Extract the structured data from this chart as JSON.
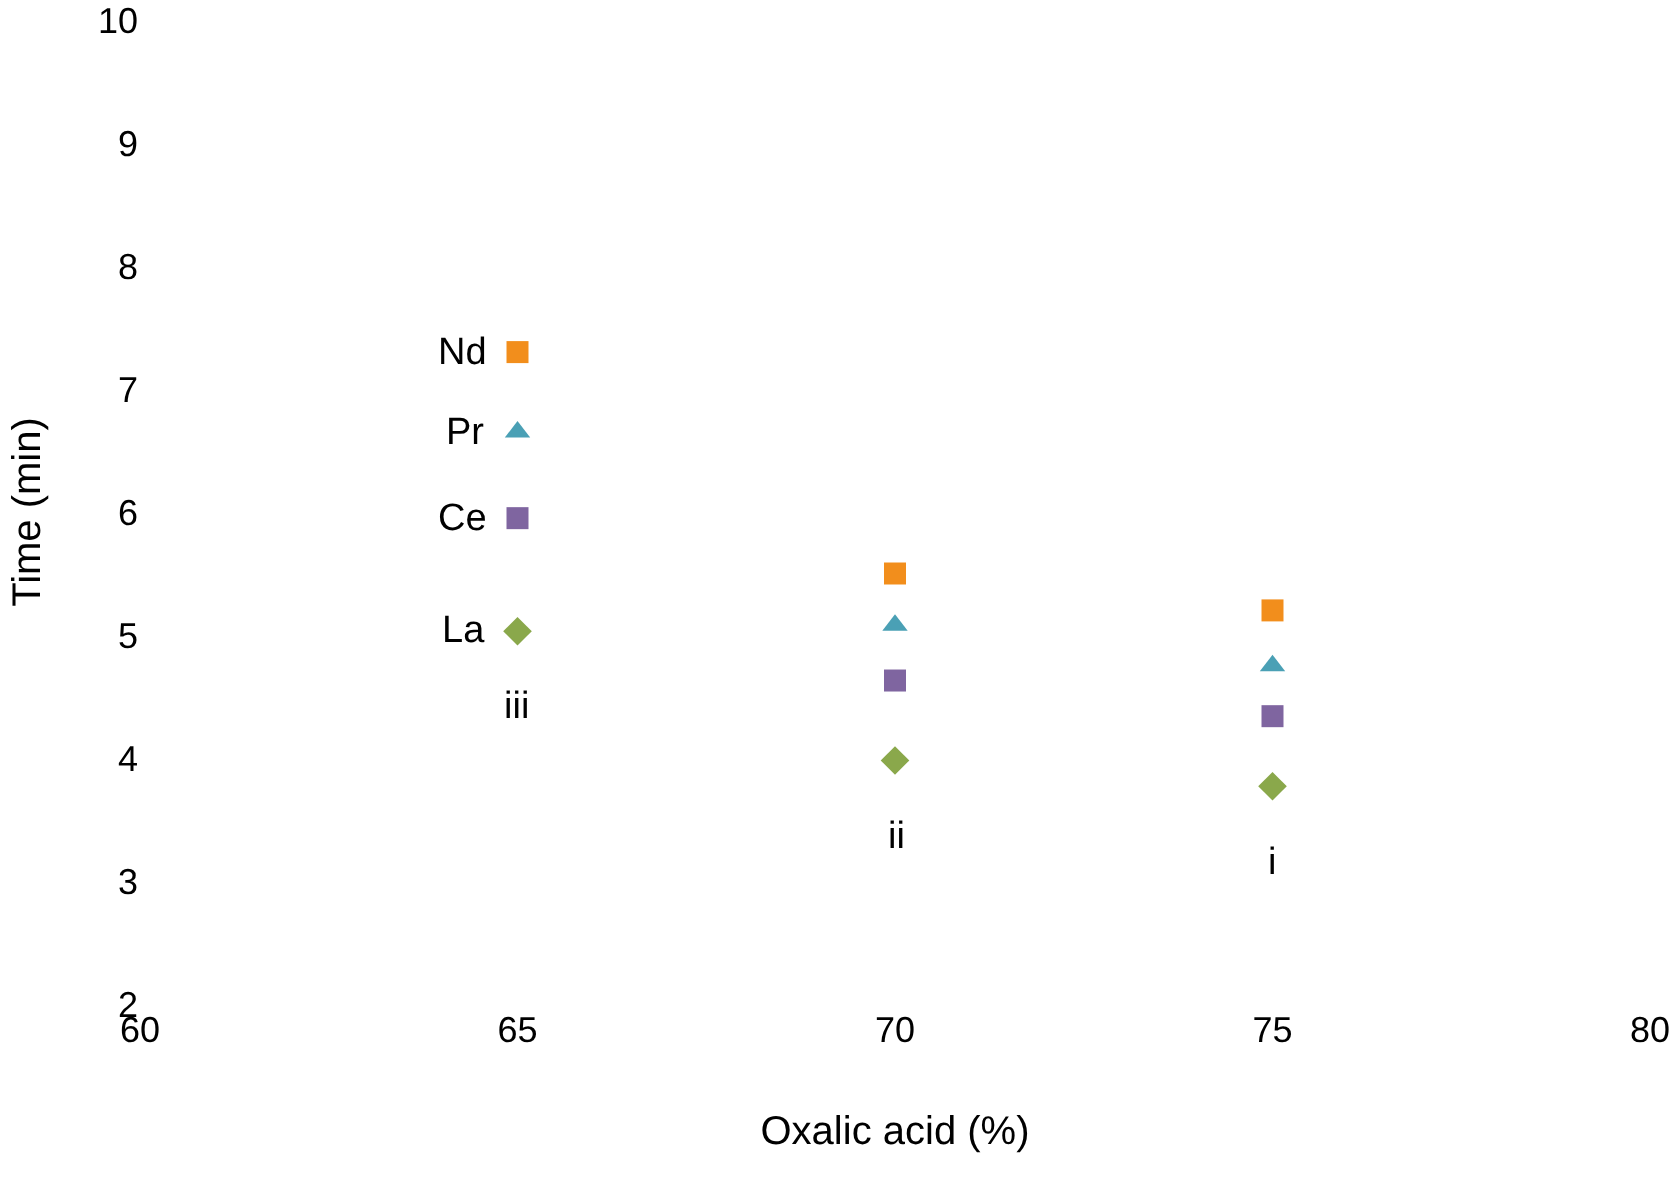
{
  "chart_data": {
    "type": "scatter",
    "xlabel": "Oxalic acid (%)",
    "ylabel": "Time (min)",
    "x": [
      65,
      70,
      75
    ],
    "series": [
      {
        "name": "Nd",
        "color": "#f28e1c",
        "marker": "square",
        "values": [
          7.3,
          5.5,
          5.2
        ]
      },
      {
        "name": "Pr",
        "color": "#4aa0b5",
        "marker": "triangle",
        "values": [
          6.65,
          5.08,
          4.75
        ]
      },
      {
        "name": "Ce",
        "color": "#7f65a0",
        "marker": "square",
        "values": [
          5.95,
          4.63,
          4.34
        ]
      },
      {
        "name": "La",
        "color": "#8aa84b",
        "marker": "diamond",
        "values": [
          5.03,
          3.98,
          3.77
        ]
      }
    ],
    "annotations": [
      "iii",
      "ii",
      "i"
    ],
    "xlim": [
      60,
      80
    ],
    "xticks": [
      60,
      65,
      70,
      75,
      80
    ],
    "ylim": [
      2,
      10
    ],
    "yticks": [
      2,
      3,
      4,
      5,
      6,
      7,
      8,
      9,
      10
    ],
    "grid": false,
    "legend": false
  }
}
